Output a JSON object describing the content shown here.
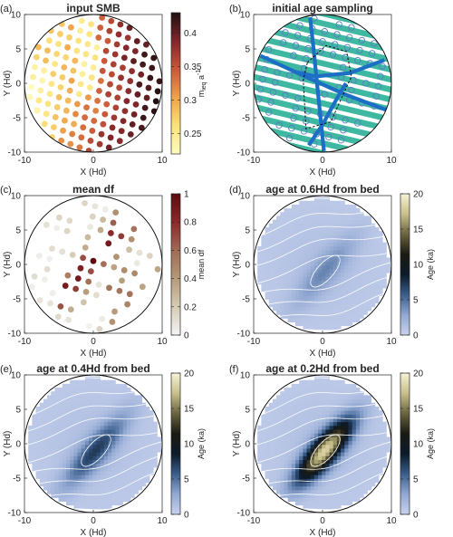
{
  "chart_data": [
    {
      "panel_label": "(a)",
      "title": "input SMB",
      "type": "scatter",
      "xlabel": "X (Hd)",
      "ylabel": "Y (Hd)",
      "xlim": [
        -10,
        10
      ],
      "ylim": [
        -10,
        10
      ],
      "xticks": [
        "-10",
        "0",
        "10"
      ],
      "yticks": [
        "10",
        "5",
        "0",
        "-5",
        "-10"
      ],
      "colorbar": {
        "label_main": "m",
        "label_sub": "ieq",
        "label_unit": " a",
        "label_sup": "-1",
        "ticks": [
          "0.4",
          "0.35",
          "0.3",
          "0.25"
        ],
        "range": [
          0.22,
          0.43
        ],
        "colormap": [
          "#fffcc0",
          "#fbe27a",
          "#efa24c",
          "#c9583a",
          "#80262b",
          "#201010"
        ]
      },
      "scatter": {
        "points_in_data": "sampling along tracks",
        "value_trend": "low centre-left, high towards east"
      }
    },
    {
      "panel_label": "(b)",
      "title": "initial age sampling",
      "type": "scatter",
      "xlabel": "X (Hd)",
      "ylabel": "Y (Hd)",
      "xlim": [
        -10,
        10
      ],
      "ylim": [
        -10,
        10
      ],
      "xticks": [
        "-10",
        "0",
        "10"
      ],
      "yticks": [
        "10",
        "5",
        "0",
        "-5",
        "-10"
      ],
      "colors": {
        "tracks": "#3fb8a2",
        "circles": "#5a79c4",
        "lines": "#1c6fc4",
        "dashed": "#000000"
      }
    },
    {
      "panel_label": "(c)",
      "title": "mean df",
      "type": "scatter",
      "xlabel": "X (Hd)",
      "ylabel": "Y (Hd)",
      "xlim": [
        -10,
        10
      ],
      "ylim": [
        -10,
        10
      ],
      "xticks": [
        "-10",
        "0",
        "10"
      ],
      "yticks": [
        "10",
        "5",
        "0",
        "-5",
        "-10"
      ],
      "colorbar": {
        "label": "mean df",
        "ticks": [
          "1",
          "0.8",
          "0.6",
          "0.4",
          "0.2",
          "0"
        ],
        "range": [
          0,
          1
        ],
        "colormap": [
          "#f5f5f5",
          "#d6ccb4",
          "#b59a78",
          "#a06a55",
          "#8a2a2a",
          "#5a0a10"
        ]
      }
    },
    {
      "panel_label": "(d)",
      "title": "age at 0.6Hd from bed",
      "type": "heatmap",
      "xlabel": "X (Hd)",
      "ylabel": "Y (Hd)",
      "xlim": [
        -10,
        10
      ],
      "ylim": [
        -10,
        10
      ],
      "xticks": [
        "-10",
        "0",
        "10"
      ],
      "yticks": [
        "10",
        "5",
        "0",
        "-5",
        "-10"
      ],
      "peak_age_ka": 3,
      "colorbar": {
        "label": "Age (ka)",
        "ticks": [
          "20",
          "15",
          "10",
          "5",
          "0"
        ],
        "range": [
          0,
          20
        ],
        "colormap": [
          "#c9d2ee",
          "#91a8d2",
          "#3b5e8c",
          "#0c1a2a",
          "#1a1a12",
          "#6a6440",
          "#c8c08a",
          "#f6f3d6"
        ]
      }
    },
    {
      "panel_label": "(e)",
      "title": "age at 0.4Hd from bed",
      "type": "heatmap",
      "xlabel": "X (Hd)",
      "ylabel": "Y (Hd)",
      "xlim": [
        -10,
        10
      ],
      "ylim": [
        -10,
        10
      ],
      "xticks": [
        "-10",
        "0",
        "10"
      ],
      "yticks": [
        "10",
        "5",
        "0",
        "-5",
        "-10"
      ],
      "peak_age_ka": 6,
      "colorbar": {
        "label": "Age (ka)",
        "ticks": [
          "20",
          "15",
          "10",
          "5",
          "0"
        ],
        "range": [
          0,
          20
        ],
        "colormap": [
          "#c9d2ee",
          "#91a8d2",
          "#3b5e8c",
          "#0c1a2a",
          "#1a1a12",
          "#6a6440",
          "#c8c08a",
          "#f6f3d6"
        ]
      }
    },
    {
      "panel_label": "(f)",
      "title": "age at 0.2Hd from bed",
      "type": "heatmap",
      "xlabel": "X (Hd)",
      "ylabel": "Y (Hd)",
      "xlim": [
        -10,
        10
      ],
      "ylim": [
        -10,
        10
      ],
      "xticks": [
        "-10",
        "0",
        "10"
      ],
      "yticks": [
        "10",
        "5",
        "0",
        "-5",
        "-10"
      ],
      "peak_age_ka": 17,
      "colorbar": {
        "label": "Age (ka)",
        "ticks": [
          "20",
          "15",
          "10",
          "5",
          "0"
        ],
        "range": [
          0,
          20
        ],
        "colormap": [
          "#c9d2ee",
          "#91a8d2",
          "#3b5e8c",
          "#0c1a2a",
          "#1a1a12",
          "#6a6440",
          "#c8c08a",
          "#f6f3d6"
        ]
      }
    }
  ]
}
